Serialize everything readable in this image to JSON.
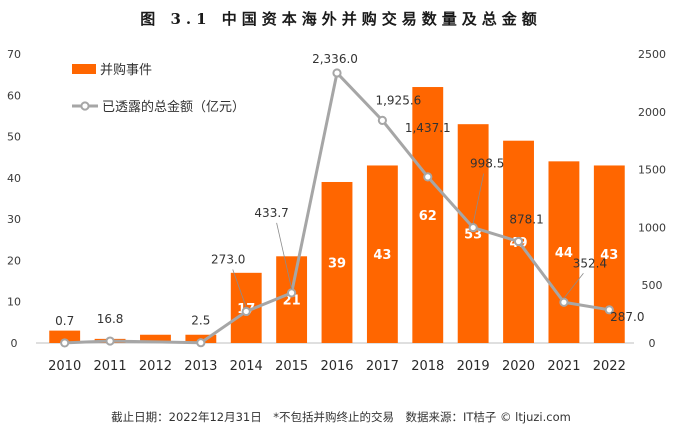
{
  "chart_data": {
    "type": "bar",
    "title": "图 3.1 中国资本海外并购交易数量及总金额",
    "categories": [
      "2010",
      "2011",
      "2012",
      "2013",
      "2014",
      "2015",
      "2016",
      "2017",
      "2018",
      "2019",
      "2020",
      "2021",
      "2022"
    ],
    "series": [
      {
        "name": "并购事件",
        "kind": "bar",
        "axis": "left",
        "color": "#ff6600",
        "values": [
          3,
          1,
          2,
          2,
          17,
          21,
          39,
          43,
          62,
          53,
          49,
          44,
          43
        ],
        "value_labels": [
          "",
          "",
          "",
          "",
          "17",
          "21",
          "39",
          "43",
          "62",
          "53",
          "49",
          "44",
          "43"
        ]
      },
      {
        "name": "已透露的总金额（亿元）",
        "kind": "line",
        "axis": "right",
        "color": "#a6a6a6",
        "values": [
          0.7,
          16.8,
          null,
          2.5,
          273.0,
          433.7,
          2336.0,
          1925.6,
          1437.1,
          998.5,
          878.1,
          352.4,
          287.0
        ],
        "value_labels": [
          "0.7",
          "16.8",
          "",
          "2.5",
          "273.0",
          "433.7",
          "2,336.0",
          "1,925.6",
          "1,437.1",
          "998.5",
          "878.1",
          "352.4",
          "287.0"
        ]
      }
    ],
    "y_left": {
      "ylim": [
        0,
        70
      ],
      "ticks": [
        0,
        10,
        20,
        30,
        40,
        50,
        60,
        70
      ]
    },
    "y_right": {
      "ylim": [
        0,
        2500
      ],
      "ticks": [
        0,
        500,
        1000,
        1500,
        2000,
        2500
      ]
    },
    "xlabel": "",
    "ylabel": "",
    "grid": false,
    "legend": "top-left"
  },
  "footer": "截止日期：2022年12月31日　*不包括并购终止的交易　数据来源：IT桔子 © ltjuzi.com"
}
